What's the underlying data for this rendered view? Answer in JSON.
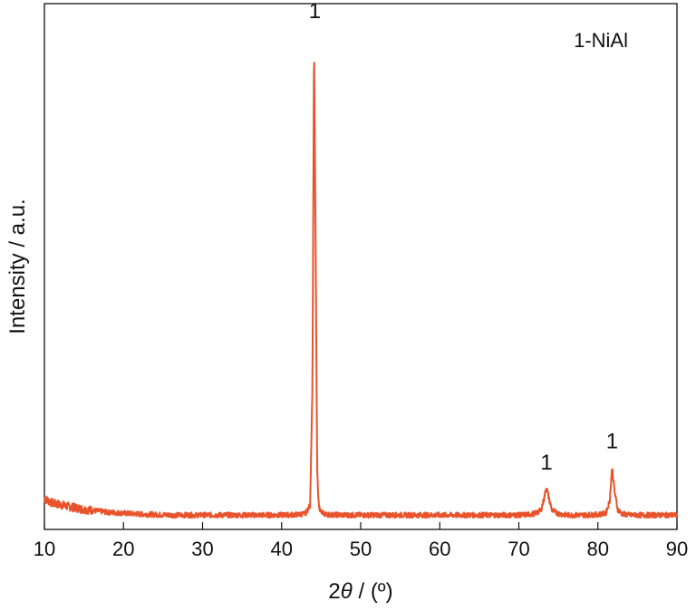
{
  "chart_data": {
    "type": "line",
    "title": "",
    "xlabel": {
      "prefix": "2",
      "symbol": "θ",
      "suffix": " / (º)"
    },
    "ylabel": "Intensity / a.u.",
    "xlim": [
      10,
      90
    ],
    "ylim": [
      0,
      110
    ],
    "x_ticks": [
      "10",
      "20",
      "30",
      "40",
      "50",
      "60",
      "70",
      "80",
      "90"
    ],
    "y_ticks": [],
    "grid": false,
    "legend": {
      "text": "1-NiAl",
      "position": "top-right"
    },
    "line_color": "#E8532B",
    "series": [
      {
        "name": "1-NiAl",
        "x": [
          10,
          11,
          12,
          13,
          14,
          15,
          16,
          17,
          18,
          19,
          20,
          22,
          24,
          26,
          28,
          30,
          32,
          34,
          36,
          38,
          40,
          42,
          43,
          43.6,
          43.9,
          44.1,
          44.3,
          44.5,
          44.7,
          45,
          45.5,
          46,
          48,
          50,
          52,
          54,
          56,
          58,
          60,
          62,
          64,
          66,
          68,
          70,
          71,
          72,
          72.8,
          73.2,
          73.5,
          73.8,
          74.2,
          75,
          76,
          78,
          80,
          81,
          81.5,
          81.8,
          82.1,
          82.5,
          83,
          84,
          86,
          88,
          90
        ],
        "y": [
          6.5,
          5.5,
          5.2,
          4.8,
          4.5,
          4.2,
          4.0,
          3.8,
          3.6,
          3.5,
          3.4,
          3.2,
          3.1,
          3.0,
          3.0,
          3.0,
          3.0,
          3.0,
          3.0,
          3.0,
          3.0,
          3.1,
          3.3,
          5,
          30,
          102,
          60,
          12,
          5,
          3.6,
          3.2,
          3.1,
          3.0,
          3.0,
          3.0,
          3.0,
          3.0,
          3.0,
          3.0,
          3.0,
          3.0,
          3.0,
          3.0,
          3.0,
          3.1,
          3.3,
          4.0,
          6.5,
          9.0,
          6.5,
          4.0,
          3.3,
          3.0,
          3.0,
          3.1,
          3.4,
          6.0,
          13.0,
          8.0,
          4.2,
          3.3,
          3.0,
          3.0,
          3.0,
          3.0
        ]
      }
    ],
    "annotations": [
      {
        "text": "1",
        "x": 44.2,
        "y": 107
      },
      {
        "text": "1",
        "x": 73.5,
        "y": 12.5
      },
      {
        "text": "1",
        "x": 81.8,
        "y": 17
      }
    ]
  }
}
